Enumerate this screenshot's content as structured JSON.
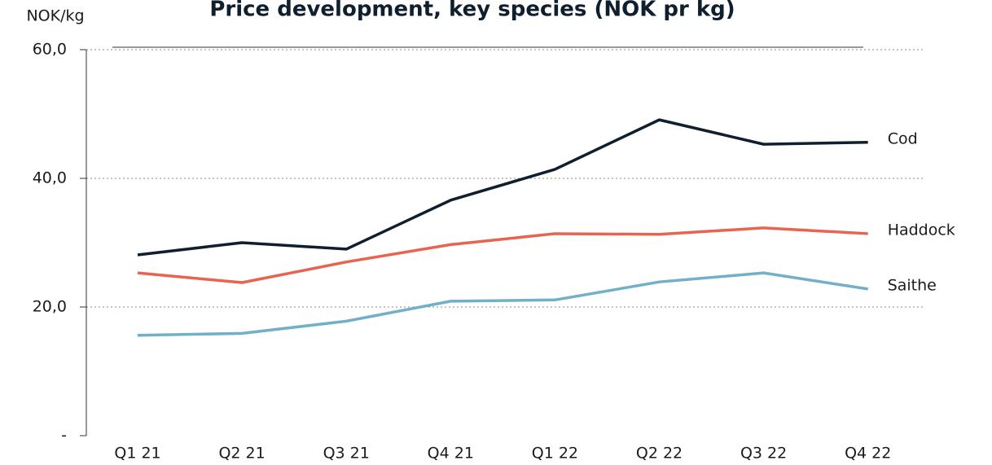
{
  "chart_data": {
    "type": "line",
    "title": "Price development, key species (NOK pr kg)",
    "y_label": "NOK/kg",
    "categories": [
      "Q1 21",
      "Q2 21",
      "Q3 21",
      "Q4 21",
      "Q1 22",
      "Q2 22",
      "Q3 22",
      "Q4 22"
    ],
    "series": [
      {
        "name": "Cod",
        "color": "#0f1f2e",
        "values": [
          28.1,
          30.0,
          29.0,
          36.6,
          41.4,
          49.1,
          45.3,
          45.6
        ]
      },
      {
        "name": "Haddock",
        "color": "#e8644f",
        "values": [
          25.3,
          23.8,
          27.0,
          29.7,
          31.4,
          31.3,
          32.3,
          31.4
        ]
      },
      {
        "name": "Saithe",
        "color": "#72afc8",
        "values": [
          15.6,
          15.9,
          17.8,
          20.9,
          21.1,
          23.9,
          25.3,
          22.8
        ]
      }
    ],
    "ylim": [
      0,
      60
    ],
    "yticks": [
      {
        "value": 0,
        "label": "-"
      },
      {
        "value": 20,
        "label": "20,0"
      },
      {
        "value": 40,
        "label": "40,0"
      },
      {
        "value": 60,
        "label": "60,0"
      }
    ],
    "grid": true
  }
}
